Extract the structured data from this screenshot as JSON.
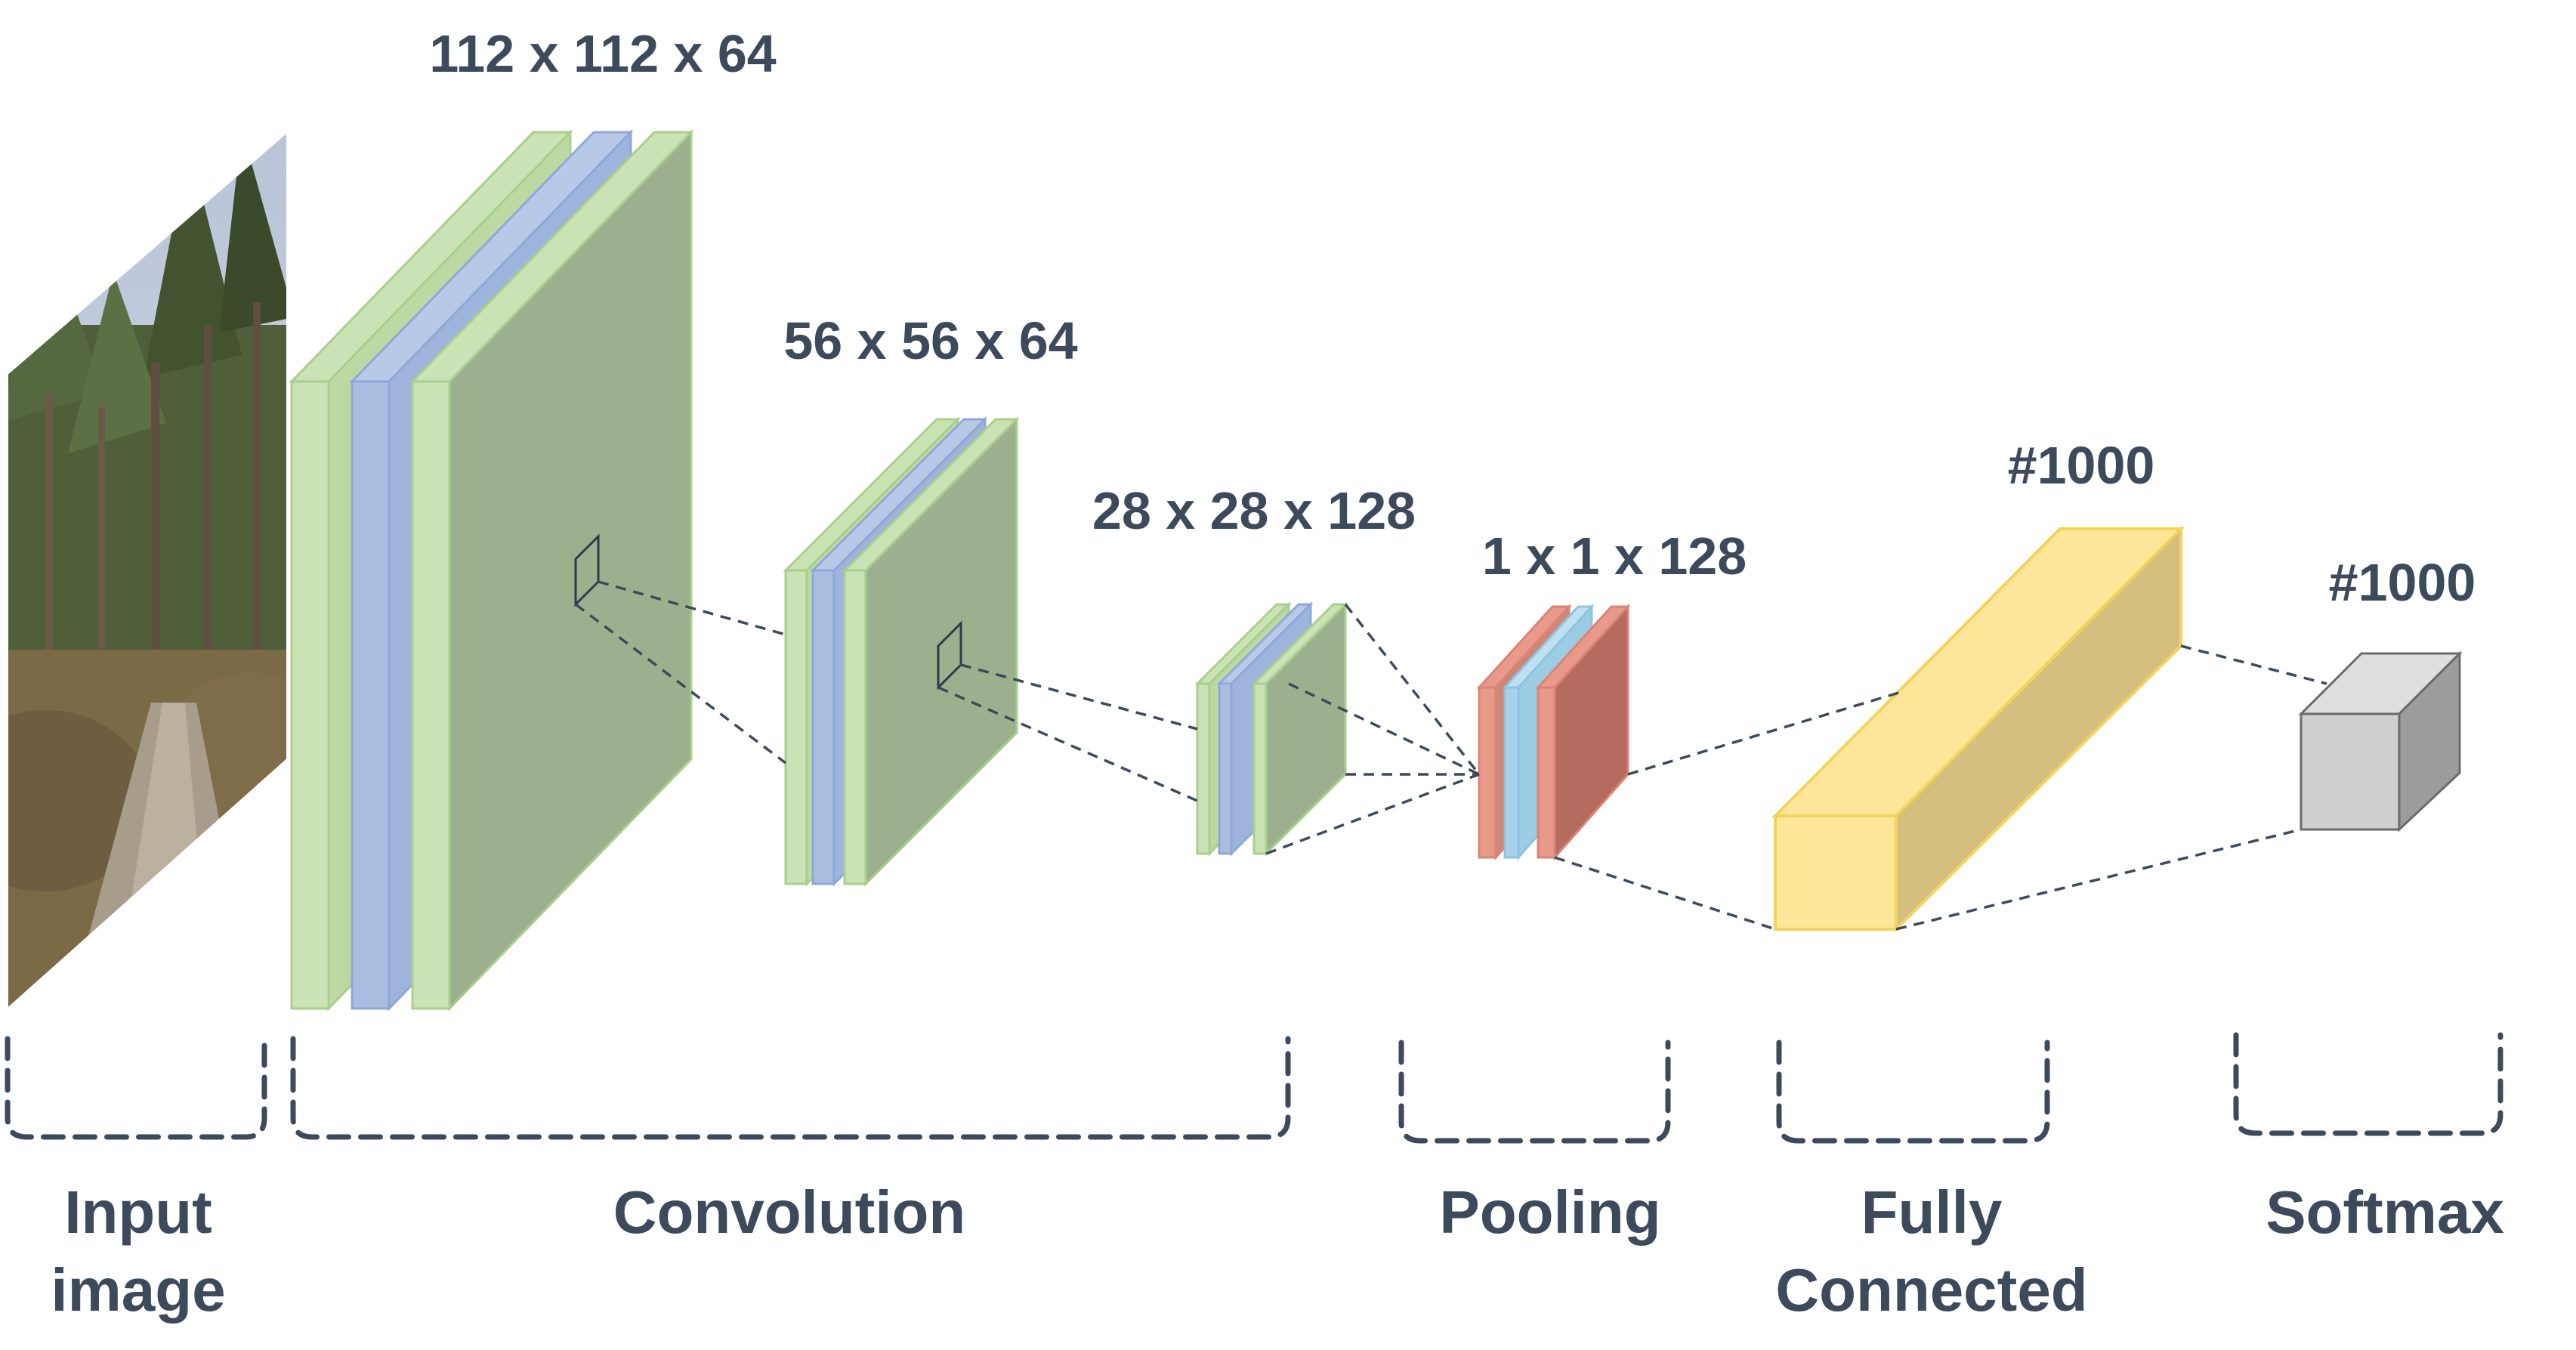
{
  "dimensions": {
    "conv1": "112 x 112 x 64",
    "conv2": "56 x 56 x 64",
    "conv3": "28 x 28 x 128",
    "pool": "1 x 1 x 128",
    "fc": "#1000",
    "softmax": "#1000"
  },
  "stages": {
    "input_line1": "Input",
    "input_line2": "image",
    "convolution": "Convolution",
    "pooling": "Pooling",
    "fc_line1": "Fully",
    "fc_line2": "Connected",
    "softmax": "Softmax"
  },
  "colors": {
    "conv_green": "#9db08e",
    "conv_green_light": "#c9e3b5",
    "conv_blue": "#a8bde0",
    "pool_red": "#b56b5e",
    "pool_red_light": "#e8998a",
    "pool_blue": "#a9d2ea",
    "fc_yellow": "#fde69a",
    "softmax_gray": "#cfcfcf",
    "text": "#3d4a5c"
  }
}
